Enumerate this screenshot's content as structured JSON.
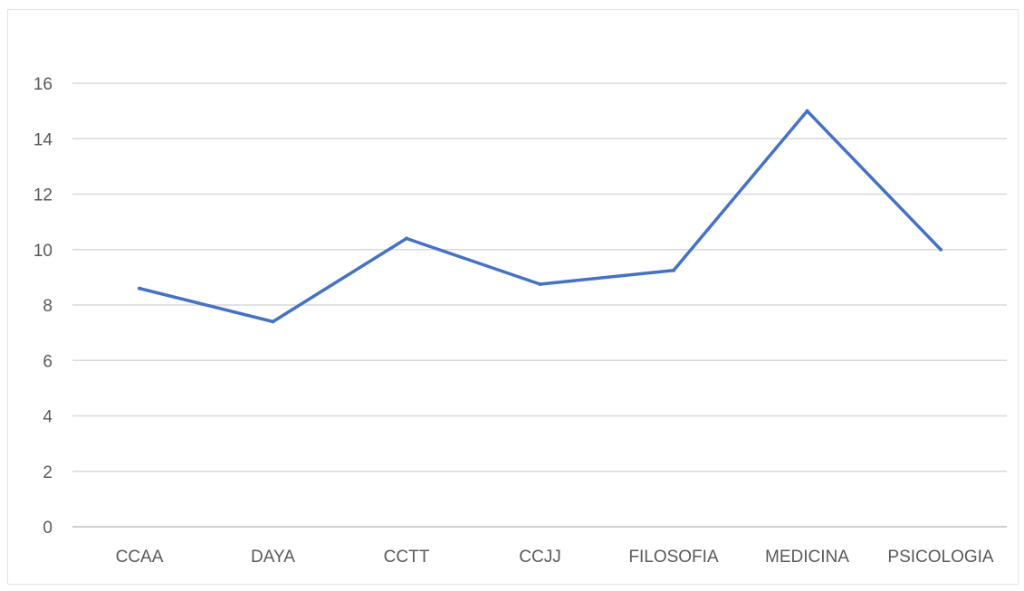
{
  "chart_data": {
    "type": "line",
    "title": "",
    "xlabel": "",
    "ylabel": "",
    "categories": [
      "CCAA",
      "DAYA",
      "CCTT",
      "CCJJ",
      "FILOSOFIA",
      "MEDICINA",
      "PSICOLOGIA"
    ],
    "series": [
      {
        "values": [
          8.6,
          7.4,
          10.4,
          8.75,
          9.25,
          15.0,
          10.0
        ]
      }
    ],
    "ylim": [
      0,
      16
    ],
    "yticks": [
      "0",
      "2",
      "4",
      "6",
      "8",
      "10",
      "12",
      "14",
      "16"
    ],
    "grid": true,
    "legend": "none",
    "colors": {
      "line": "#4472C4",
      "grid": "#d9d9d9",
      "axis": "#bfbfbf",
      "text": "#595959"
    }
  }
}
